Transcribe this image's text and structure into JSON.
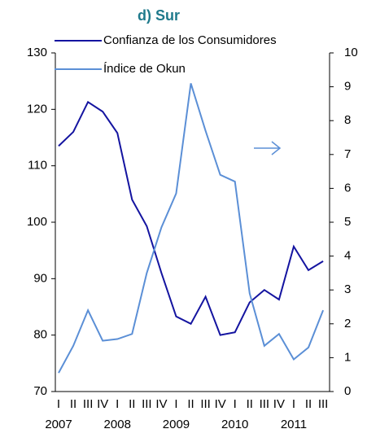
{
  "chart_data": {
    "type": "line",
    "title": "d) Sur",
    "categories": [
      "I",
      "II",
      "III",
      "IV",
      "I",
      "II",
      "III",
      "IV",
      "I",
      "II",
      "III",
      "IV",
      "I",
      "II",
      "III",
      "IV",
      "I",
      "II",
      "III"
    ],
    "x_groups": [
      "2007",
      null,
      null,
      null,
      "2008",
      null,
      null,
      null,
      "2009",
      null,
      null,
      null,
      "2010",
      null,
      null,
      null,
      "2011",
      null,
      null
    ],
    "series": [
      {
        "name": "Confianza de los Consumidores",
        "color": "#1414a0",
        "values": [
          113.5,
          116,
          121.3,
          119.6,
          115.8,
          104,
          99.3,
          91,
          83.3,
          82,
          86.8,
          80,
          80.5,
          85.8,
          88,
          86.3,
          95.7,
          91.5,
          93.1
        ]
      },
      {
        "name": "Índice de Okun",
        "color": "#5b8fd6",
        "axis": "y2",
        "values": [
          0.55,
          1.35,
          2.4,
          1.5,
          1.55,
          1.7,
          3.5,
          4.85,
          5.85,
          9.1,
          7.7,
          6.4,
          6.2,
          2.9,
          1.35,
          1.7,
          0.95,
          1.3,
          2.4
        ]
      }
    ],
    "ylim": [
      70,
      130
    ],
    "yticks": [
      70,
      80,
      90,
      100,
      110,
      120,
      130
    ],
    "y2lim": [
      0,
      10
    ],
    "y2ticks": [
      0,
      1,
      2,
      3,
      4,
      5,
      6,
      7,
      8,
      9,
      10
    ]
  }
}
